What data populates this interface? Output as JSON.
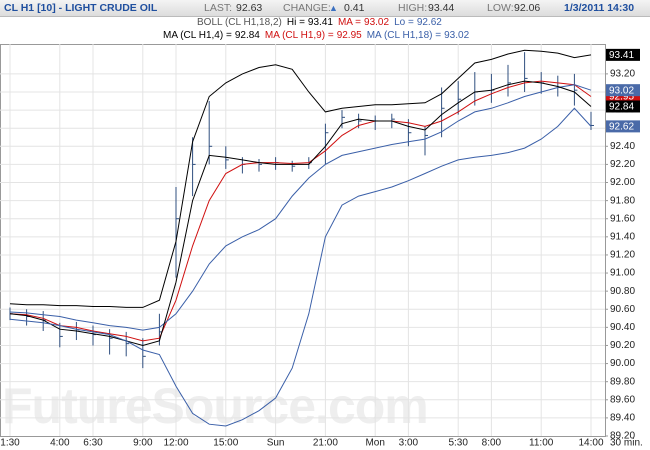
{
  "header": {
    "symbol": "CL H1 [10] - LIGHT CRUDE OIL",
    "fields": [
      {
        "label": "LAST:",
        "value": 92.63
      },
      {
        "label": "CHANGE:",
        "arrow": "▲",
        "value": 0.41
      },
      {
        "label": "HIGH:",
        "value": 93.44
      },
      {
        "label": "LOW:",
        "value": 92.06
      }
    ],
    "timestamp": "1/3/2011 14:30"
  },
  "chart_data": {
    "type": "ohlc",
    "legend_rows": [
      {
        "title": "BOLL (CL H1,18,2)",
        "items": [
          {
            "label": "Hi =",
            "value": 93.41,
            "color": "#000000"
          },
          {
            "label": "MA =",
            "value": 93.02,
            "color": "#d01010"
          },
          {
            "label": "Lo =",
            "value": 92.62,
            "color": "#3a5fa8"
          }
        ]
      },
      {
        "items": [
          {
            "label": "MA (CL H1,4) =",
            "value": 92.84,
            "color": "#000000"
          },
          {
            "label": "MA (CL H1,9) =",
            "value": 92.95,
            "color": "#d01010"
          },
          {
            "label": "MA (CL H1,18) =",
            "value": 93.02,
            "color": "#3a5fa8"
          }
        ]
      }
    ],
    "categories": [
      "1:30",
      null,
      null,
      "4:00",
      null,
      "6:30",
      null,
      null,
      "9:00",
      null,
      "12:00",
      null,
      null,
      "15:00",
      null,
      null,
      "Sun",
      null,
      null,
      "21:00",
      null,
      null,
      "Mon",
      null,
      "3:00",
      null,
      null,
      "5:30",
      null,
      "8:00",
      null,
      null,
      "11:00",
      null,
      null,
      "14:00"
    ],
    "x_unit": "30 min.",
    "ohlc": {
      "color": "#2f4f7f",
      "high": [
        90.62,
        90.6,
        90.58,
        90.45,
        90.46,
        90.42,
        90.38,
        90.35,
        90.28,
        90.55,
        91.95,
        92.5,
        92.9,
        92.4,
        92.28,
        92.26,
        92.28,
        92.24,
        92.28,
        92.65,
        92.8,
        92.76,
        92.74,
        92.76,
        92.7,
        92.62,
        93.05,
        93.12,
        93.22,
        93.2,
        93.3,
        93.44,
        93.22,
        93.18,
        93.2,
        92.78
      ],
      "low": [
        90.48,
        90.42,
        90.36,
        90.18,
        90.26,
        90.2,
        90.1,
        90.08,
        89.95,
        90.2,
        90.95,
        91.85,
        92.2,
        92.15,
        92.1,
        92.12,
        92.14,
        92.12,
        92.15,
        92.2,
        92.6,
        92.6,
        92.58,
        92.6,
        92.4,
        92.3,
        92.5,
        92.75,
        92.85,
        92.88,
        92.95,
        93.0,
        92.98,
        92.95,
        92.85,
        92.58
      ],
      "close": [
        90.55,
        90.52,
        90.48,
        90.3,
        90.36,
        90.32,
        90.28,
        90.22,
        90.08,
        90.35,
        91.6,
        92.2,
        92.4,
        92.25,
        92.2,
        92.2,
        92.22,
        92.18,
        92.22,
        92.55,
        92.72,
        92.68,
        92.68,
        92.7,
        92.55,
        92.52,
        92.82,
        92.92,
        93.0,
        93.02,
        93.1,
        93.15,
        93.1,
        93.05,
        93.02,
        92.63
      ]
    },
    "series": [
      {
        "color": "#d01010",
        "values": [
          90.55,
          90.54,
          90.5,
          90.42,
          90.4,
          90.36,
          90.33,
          90.3,
          90.25,
          90.28,
          90.7,
          91.3,
          91.8,
          92.1,
          92.2,
          92.22,
          92.22,
          92.21,
          92.22,
          92.35,
          92.52,
          92.63,
          92.68,
          92.68,
          92.66,
          92.62,
          92.68,
          92.78,
          92.9,
          92.98,
          93.05,
          93.1,
          93.12,
          93.1,
          93.08,
          92.95
        ]
      },
      {
        "color": "#3a5fa8",
        "values": [
          90.57,
          90.56,
          90.54,
          90.52,
          90.48,
          90.45,
          90.42,
          90.4,
          90.37,
          90.4,
          90.55,
          90.8,
          91.1,
          91.3,
          91.4,
          91.48,
          91.6,
          91.85,
          92.05,
          92.2,
          92.3,
          92.34,
          92.38,
          92.42,
          92.45,
          92.48,
          92.56,
          92.68,
          92.78,
          92.82,
          92.88,
          92.95,
          93.0,
          93.05,
          93.08,
          93.02
        ]
      },
      {
        "color": "#000000",
        "values": [
          90.55,
          90.53,
          90.48,
          90.38,
          90.36,
          90.33,
          90.3,
          90.25,
          90.2,
          90.25,
          90.9,
          91.8,
          92.3,
          92.28,
          92.25,
          92.22,
          92.2,
          92.2,
          92.2,
          92.4,
          92.65,
          92.7,
          92.68,
          92.68,
          92.62,
          92.58,
          92.75,
          92.88,
          93.0,
          93.02,
          93.08,
          93.12,
          93.1,
          93.06,
          93.0,
          92.84
        ]
      },
      {
        "color": "#000000",
        "values": [
          90.66,
          90.65,
          90.65,
          90.64,
          90.64,
          90.63,
          90.63,
          90.62,
          90.62,
          90.7,
          91.35,
          92.45,
          92.95,
          93.1,
          93.2,
          93.27,
          93.3,
          93.25,
          93.0,
          92.78,
          92.82,
          92.84,
          92.86,
          92.86,
          92.87,
          92.88,
          92.98,
          93.15,
          93.32,
          93.36,
          93.42,
          93.46,
          93.45,
          93.43,
          93.38,
          93.41
        ]
      },
      {
        "color": "#3a5fa8",
        "values": [
          90.49,
          90.47,
          90.45,
          90.42,
          90.38,
          90.35,
          90.32,
          90.25,
          90.15,
          90.1,
          89.75,
          89.45,
          89.33,
          89.31,
          89.38,
          89.48,
          89.62,
          89.95,
          90.55,
          91.4,
          91.75,
          91.85,
          91.9,
          91.95,
          92.02,
          92.1,
          92.18,
          92.25,
          92.28,
          92.3,
          92.33,
          92.38,
          92.48,
          92.62,
          92.82,
          92.62
        ]
      }
    ],
    "ylim": [
      89.2,
      93.53
    ],
    "yticks": [
      {
        "value": 93.2,
        "label": "93.20"
      },
      {
        "value": 93.0,
        "label": "93.00"
      },
      {
        "value": 92.8,
        "label": "92.80"
      },
      {
        "value": 92.6,
        "label": "92.60"
      },
      {
        "value": 92.4,
        "label": "92.40"
      },
      {
        "value": 92.2,
        "label": "92.20"
      },
      {
        "value": 92.0,
        "label": "92.00"
      },
      {
        "value": 91.8,
        "label": "91.80"
      },
      {
        "value": 91.6,
        "label": "91.60"
      },
      {
        "value": 91.4,
        "label": "91.40"
      },
      {
        "value": 91.2,
        "label": "91.20"
      },
      {
        "value": 91.0,
        "label": "91.00"
      },
      {
        "value": 90.8,
        "label": "90.80"
      },
      {
        "value": 90.6,
        "label": "90.60"
      },
      {
        "value": 90.4,
        "label": "90.40"
      },
      {
        "value": 90.2,
        "label": "90.20"
      },
      {
        "value": 90.0,
        "label": "90.00"
      },
      {
        "value": 89.8,
        "label": "89.80"
      },
      {
        "value": 89.6,
        "label": "89.60"
      },
      {
        "value": 89.4,
        "label": "89.40"
      },
      {
        "value": 89.2,
        "label": "89.20"
      }
    ],
    "grid": true,
    "watermark": "FutureSource.com"
  }
}
